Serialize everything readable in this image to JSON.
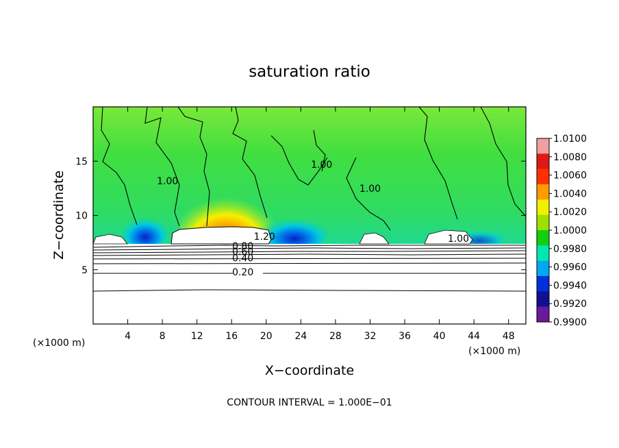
{
  "chart_data": {
    "type": "heatmap",
    "title": "saturation ratio",
    "xlabel": "X−coordinate",
    "ylabel": "Z−coordinate",
    "x_unit_left": "(×1000 m)",
    "x_unit_right": "(×1000 m)",
    "xlim": [
      0,
      50
    ],
    "ylim": [
      0,
      20
    ],
    "x_ticks": [
      4,
      8,
      12,
      16,
      20,
      24,
      28,
      32,
      36,
      40,
      44,
      48
    ],
    "y_ticks": [
      5,
      10,
      15
    ],
    "colorbar": {
      "levels": [
        1.01,
        1.008,
        1.006,
        1.004,
        1.002,
        1.0,
        0.998,
        0.996,
        0.994,
        0.992,
        0.99
      ],
      "labels": [
        "1.0100",
        "1.0080",
        "1.0060",
        "1.0040",
        "1.0020",
        "1.0000",
        "0.9980",
        "0.9960",
        "0.9940",
        "0.9920",
        "0.9900"
      ],
      "colors": [
        "#f0a0a0",
        "#e01818",
        "#ff3000",
        "#ff9a00",
        "#f0f000",
        "#a0e000",
        "#10d010",
        "#00e8b0",
        "#00a8f0",
        "#0030d8",
        "#101090",
        "#6a1a98"
      ]
    },
    "contour_labels": [
      {
        "text": "1.20",
        "x": 19.8,
        "y": 7.9
      },
      {
        "text": "0.80",
        "x": 17.3,
        "y": 7.0
      },
      {
        "text": "0.60",
        "x": 17.3,
        "y": 6.5
      },
      {
        "text": "0.40",
        "x": 17.3,
        "y": 5.9
      },
      {
        "text": "0.20",
        "x": 17.3,
        "y": 4.6
      },
      {
        "text": "1.00",
        "x": 8.6,
        "y": 13.0
      },
      {
        "text": "1.00",
        "x": 26.4,
        "y": 14.5
      },
      {
        "text": "1.00",
        "x": 32.0,
        "y": 12.3
      },
      {
        "text": "1.00",
        "x": 42.2,
        "y": 7.7
      }
    ],
    "contour_interval_label": "CONTOUR INTERVAL = 1.000E−01"
  }
}
